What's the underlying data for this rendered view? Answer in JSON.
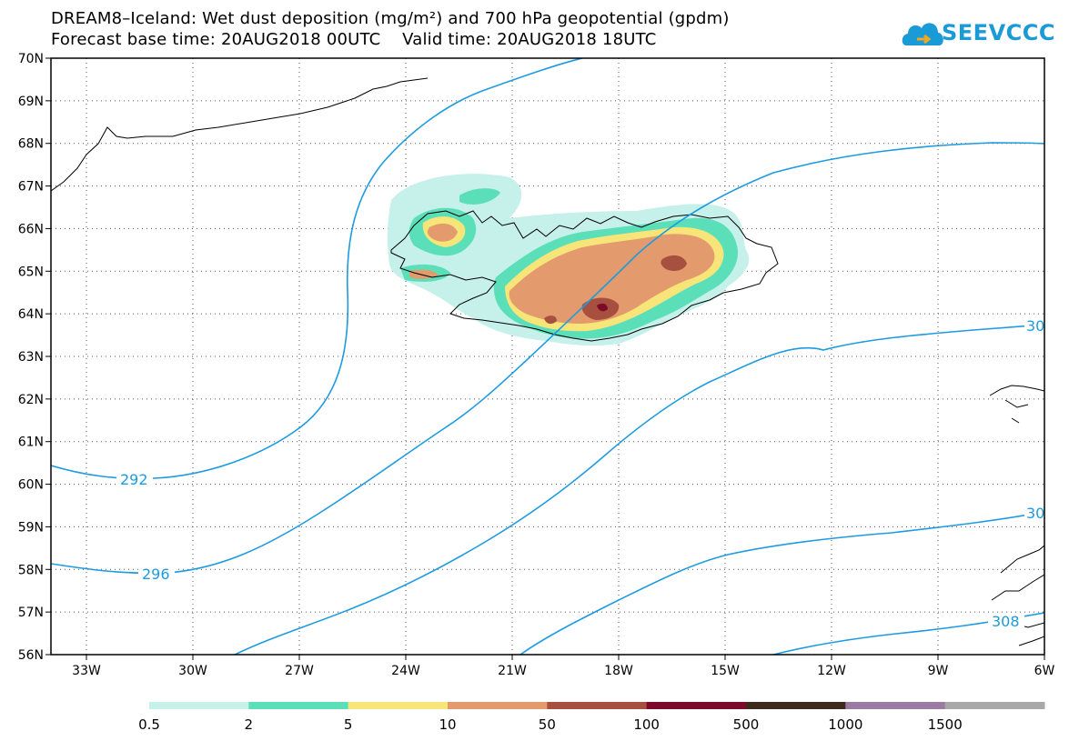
{
  "header": {
    "title": "DREAM8–Iceland: Wet dust deposition (mg/m²) and 700 hPa geopotential (gpdm)",
    "subtitle": "Forecast base time: 20AUG2018 00UTC    Valid time: 20AUG2018 18UTC"
  },
  "logo": {
    "text": "SEEVCCC",
    "icon": "cloud-icon",
    "color": "#1a9ad6"
  },
  "map": {
    "lon_range": [
      -34,
      -6
    ],
    "lat_range": [
      56,
      70
    ],
    "lon_ticks": [
      "33W",
      "30W",
      "27W",
      "24W",
      "21W",
      "18W",
      "15W",
      "12W",
      "9W",
      "6W"
    ],
    "lat_ticks": [
      "56N",
      "57N",
      "58N",
      "59N",
      "60N",
      "61N",
      "62N",
      "63N",
      "64N",
      "65N",
      "66N",
      "67N",
      "68N",
      "69N",
      "70N"
    ],
    "contour_color": "#1e9be0",
    "contour_labels": [
      {
        "text": "292"
      },
      {
        "text": "296"
      },
      {
        "text": "30"
      },
      {
        "text": "30"
      },
      {
        "text": "308"
      }
    ]
  },
  "colorbar": {
    "colors": [
      "#c6f0ea",
      "#5bdfb8",
      "#f7e57a",
      "#e39a6c",
      "#a8503f",
      "#7c0a28",
      "#3d2a1a",
      "#9d7aa3",
      "#a8a8a8"
    ],
    "labels": [
      "0.5",
      "2",
      "5",
      "10",
      "50",
      "100",
      "500",
      "1000",
      "1500"
    ]
  }
}
